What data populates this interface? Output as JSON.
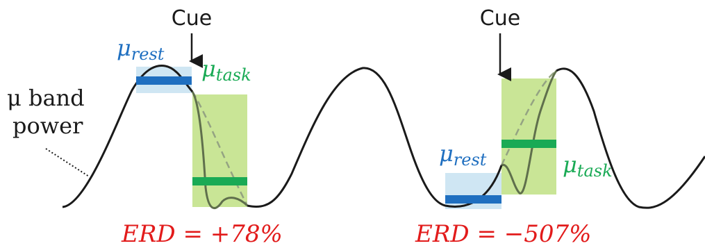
{
  "colors": {
    "curve": "#1a1a1a",
    "rest_fill": "#cfe6f3",
    "rest_bar": "#1f6fc0",
    "task_fill": "#c9e596",
    "task_bar": "#1aaa55",
    "task_curve": "#5f6f4c",
    "task_dashed": "#94a382",
    "erd_text": "#e21b1b",
    "mu_rest_text": "#1f6fc0",
    "mu_task_text": "#1aaa55"
  },
  "labels": {
    "mu_band_line1": "μ band",
    "mu_band_line2": "power",
    "cue_left": "Cue",
    "cue_right": "Cue",
    "mu_symbol": "μ",
    "rest_sub": "rest",
    "task_sub": "task"
  },
  "erd": {
    "left": "ERD = +78%",
    "right": "ERD = −507%"
  },
  "icons": {
    "cue_arrow": "down-arrow-icon",
    "leader": "dotted-leader-line"
  }
}
